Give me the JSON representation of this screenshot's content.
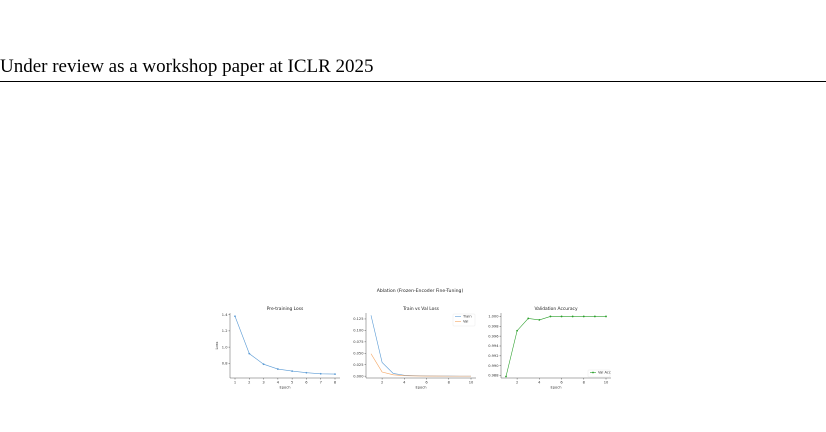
{
  "page": {
    "header": "Under review as a workshop paper at ICLR 2025"
  },
  "figure": {
    "suptitle": "Ablation (Frozen-Encoder Fine-Tuning)"
  },
  "chart_data": [
    {
      "type": "line",
      "title": "Pre-training Loss",
      "xlabel": "Epoch",
      "ylabel": "Loss",
      "x": [
        1,
        2,
        3,
        4,
        5,
        6,
        7,
        8
      ],
      "xticks": [
        "1",
        "2",
        "3",
        "4",
        "5",
        "6",
        "7",
        "8"
      ],
      "xlim": [
        0.65,
        8.35
      ],
      "ylim": [
        0.62,
        1.42
      ],
      "yticks": [
        "0.8",
        "1.0",
        "1.2",
        "1.4"
      ],
      "ytick_values": [
        0.8,
        1.0,
        1.2,
        1.4
      ],
      "series": [
        {
          "values": [
            1.38,
            0.92,
            0.79,
            0.73,
            0.705,
            0.685,
            0.672,
            0.668
          ],
          "color": "#5b9bd5",
          "markers": true
        }
      ],
      "grid": false,
      "legend": "none"
    },
    {
      "type": "line",
      "title": "Train vs Val Loss",
      "xlabel": "Epoch",
      "ylabel": "",
      "x": [
        1,
        2,
        3,
        4,
        5,
        6,
        7,
        8,
        9,
        10
      ],
      "xticks": [
        "2",
        "4",
        "6",
        "8",
        "10"
      ],
      "xtick_values": [
        2,
        4,
        6,
        8,
        10
      ],
      "xlim": [
        0.55,
        10.45
      ],
      "ylim": [
        -0.004,
        0.138
      ],
      "yticks": [
        "0.000",
        "0.025",
        "0.050",
        "0.075",
        "0.100",
        "0.125"
      ],
      "ytick_values": [
        0,
        0.025,
        0.05,
        0.075,
        0.1,
        0.125
      ],
      "series": [
        {
          "name": "Train",
          "values": [
            0.133,
            0.03,
            0.006,
            0.002,
            0.001,
            0.0005,
            0.0003,
            0.0002,
            0.0001,
            0.0001
          ],
          "color": "#5b9bd5"
        },
        {
          "name": "Val",
          "values": [
            0.049,
            0.009,
            0.003,
            0.001,
            0.0005,
            0.0003,
            0.0002,
            0.0001,
            0.0001,
            0.0001
          ],
          "color": "#f4a460"
        }
      ],
      "grid": false,
      "legend": "top-right"
    },
    {
      "type": "line",
      "title": "Validation Accuracy",
      "xlabel": "Epoch",
      "ylabel": "",
      "x": [
        1,
        2,
        3,
        4,
        5,
        6,
        7,
        8,
        9,
        10
      ],
      "xticks": [
        "2",
        "4",
        "6",
        "8",
        "10"
      ],
      "xtick_values": [
        2,
        4,
        6,
        8,
        10
      ],
      "xlim": [
        0.55,
        10.45
      ],
      "ylim": [
        0.9875,
        1.0007
      ],
      "yticks": [
        "0.988",
        "0.990",
        "0.992",
        "0.994",
        "0.996",
        "0.998",
        "1.000"
      ],
      "ytick_values": [
        0.988,
        0.99,
        0.992,
        0.994,
        0.996,
        0.998,
        1.0
      ],
      "series": [
        {
          "name": "Val Acc",
          "values": [
            0.9878,
            0.9971,
            0.9996,
            0.9993,
            1.0,
            1.0,
            1.0,
            1.0,
            1.0,
            1.0
          ],
          "color": "#2ca02c",
          "markers": true
        }
      ],
      "grid": false,
      "legend": "bottom-right"
    }
  ]
}
